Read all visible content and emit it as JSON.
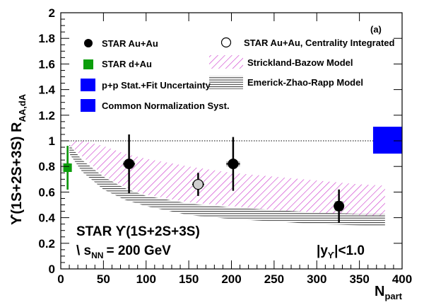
{
  "chart_data": {
    "type": "scatter",
    "panel_label": "(a)",
    "xlabel": {
      "main": "N",
      "sub": "part"
    },
    "ylabel": {
      "main": "ϒ(1S+2S+3S) R",
      "sub": "AA,dA"
    },
    "xlim": [
      0,
      400
    ],
    "ylim": [
      0,
      2
    ],
    "xticks": [
      0,
      50,
      100,
      150,
      200,
      250,
      300,
      350,
      400
    ],
    "yticks": [
      0,
      0.2,
      0.4,
      0.6,
      0.8,
      1,
      1.2,
      1.4,
      1.6,
      1.8,
      2
    ],
    "reference_line": 1.0,
    "annotations": {
      "experiment": "STAR  ϒ(1S+2S+3S)",
      "energy_prefix": "\\ s",
      "energy_sub": "NN",
      "energy_value": "= 200 GeV",
      "rapidity_prefix": "|y",
      "rapidity_sub": "ϒ",
      "rapidity_suffix": "|<1.0"
    },
    "legend": {
      "auau": "STAR Au+Au",
      "dau": "STAR d+Au",
      "pp_unc": "p+p Stat.+Fit Uncertainty",
      "norm": "Common Normalization Syst.",
      "integrated": "STAR Au+Au, Centrality Integrated",
      "sb_model": "Strickland-Bazow Model",
      "ezr_model": "Emerick-Zhao-Rapp Model"
    },
    "colors": {
      "dau": "#0b9e0b",
      "norm": "#0000ff",
      "model_sb": "#cc33cc",
      "model_ezr": "#333333"
    },
    "series": [
      {
        "name": "STAR Au+Au",
        "points": [
          {
            "x": 80,
            "y": 0.82,
            "err": 0.23,
            "xerr": 7,
            "sys": 0.02
          },
          {
            "x": 202,
            "y": 0.82,
            "err": 0.21,
            "xerr": 8,
            "sys": 0.02
          },
          {
            "x": 326,
            "y": 0.49,
            "err": 0.13,
            "xerr": 5,
            "sys": 0.04
          }
        ]
      },
      {
        "name": "STAR Au+Au, Centrality Integrated",
        "points": [
          {
            "x": 161,
            "y": 0.66,
            "err": 0.09,
            "xerr": 7,
            "sys": 0.02
          }
        ]
      },
      {
        "name": "STAR d+Au",
        "points": [
          {
            "x": 8,
            "y": 0.79,
            "err": 0.17,
            "xerr": 2,
            "sys": 0.03
          }
        ]
      }
    ],
    "pp_uncertainty_band": {
      "y_low": 0.76,
      "y_high": 0.83,
      "x_from": 0,
      "x_to": 11
    },
    "norm_syst_box": {
      "x_from": 366,
      "x_to": 400,
      "y_low": 0.9,
      "y_high": 1.11
    },
    "models": [
      {
        "name": "Strickland-Bazow Model",
        "x": [
          10,
          25,
          50,
          75,
          100,
          150,
          200,
          250,
          300,
          350,
          380
        ],
        "hi": [
          1.0,
          1.0,
          0.96,
          0.9,
          0.86,
          0.8,
          0.75,
          0.72,
          0.69,
          0.66,
          0.65
        ],
        "lo": [
          0.97,
          0.88,
          0.73,
          0.64,
          0.58,
          0.52,
          0.49,
          0.46,
          0.44,
          0.42,
          0.41
        ]
      },
      {
        "name": "Emerick-Zhao-Rapp Model",
        "x": [
          10,
          25,
          50,
          75,
          100,
          150,
          200,
          250,
          300,
          350,
          380
        ],
        "hi": [
          0.97,
          0.85,
          0.72,
          0.63,
          0.57,
          0.51,
          0.48,
          0.46,
          0.44,
          0.43,
          0.43
        ],
        "lo": [
          0.9,
          0.76,
          0.62,
          0.54,
          0.49,
          0.42,
          0.39,
          0.37,
          0.35,
          0.34,
          0.33
        ]
      }
    ]
  }
}
